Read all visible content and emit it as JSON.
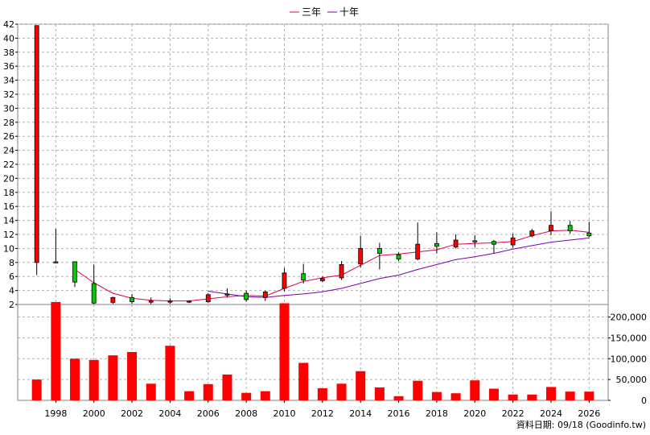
{
  "legend": {
    "items": [
      {
        "label": "三年",
        "color": "#e0004a"
      },
      {
        "label": "十年",
        "color": "#7a00b0"
      }
    ]
  },
  "footer": {
    "source": "資料日期: 09/18 (Goodinfo.tw)"
  },
  "colors": {
    "up": "#ff0000",
    "down": "#00cc00",
    "volume": "#ff0000",
    "grid": "#b0b0b0"
  },
  "chart_data": [
    {
      "type": "candlestick",
      "title": "",
      "ylim": [
        2,
        42
      ],
      "y_ticks": [
        2,
        4,
        6,
        8,
        10,
        12,
        14,
        16,
        18,
        20,
        22,
        24,
        26,
        28,
        30,
        32,
        34,
        36,
        38,
        40,
        42
      ],
      "x_ticks": [
        "1998",
        "2000",
        "2002",
        "2004",
        "2006",
        "2008",
        "2010",
        "2012",
        "2014",
        "2016",
        "2018",
        "2020",
        "2022",
        "2024",
        "2026"
      ],
      "grid": true,
      "candles": [
        {
          "year": 1997,
          "open": 8.0,
          "close": 41.8,
          "high": 41.8,
          "low": 6.2
        },
        {
          "year": 1998,
          "open": 8.1,
          "close": 8.0,
          "high": 12.8,
          "low": 7.9
        },
        {
          "year": 1999,
          "open": 8.1,
          "close": 5.2,
          "high": 8.1,
          "low": 4.5
        },
        {
          "year": 2000,
          "open": 5.0,
          "close": 2.2,
          "high": 7.7,
          "low": 2.0
        },
        {
          "year": 2001,
          "open": 2.3,
          "close": 3.0,
          "high": 3.1,
          "low": 2.1
        },
        {
          "year": 2002,
          "open": 3.0,
          "close": 2.4,
          "high": 3.5,
          "low": 2.1
        },
        {
          "year": 2003,
          "open": 2.4,
          "close": 2.5,
          "high": 3.0,
          "low": 2.0
        },
        {
          "year": 2004,
          "open": 2.4,
          "close": 2.5,
          "high": 2.9,
          "low": 2.1
        },
        {
          "year": 2005,
          "open": 2.4,
          "close": 2.5,
          "high": 2.6,
          "low": 2.2
        },
        {
          "year": 2006,
          "open": 2.4,
          "close": 3.4,
          "high": 3.6,
          "low": 2.2
        },
        {
          "year": 2007,
          "open": 3.4,
          "close": 3.5,
          "high": 4.3,
          "low": 3.0
        },
        {
          "year": 2008,
          "open": 3.6,
          "close": 2.7,
          "high": 4.0,
          "low": 2.4
        },
        {
          "year": 2009,
          "open": 3.0,
          "close": 3.8,
          "high": 4.0,
          "low": 2.5
        },
        {
          "year": 2010,
          "open": 4.3,
          "close": 6.5,
          "high": 7.2,
          "low": 3.9
        },
        {
          "year": 2011,
          "open": 6.4,
          "close": 5.5,
          "high": 7.8,
          "low": 5.0
        },
        {
          "year": 2012,
          "open": 5.4,
          "close": 5.7,
          "high": 6.0,
          "low": 5.2
        },
        {
          "year": 2013,
          "open": 5.8,
          "close": 7.7,
          "high": 8.2,
          "low": 5.5
        },
        {
          "year": 2014,
          "open": 7.8,
          "close": 10.0,
          "high": 11.8,
          "low": 7.3
        },
        {
          "year": 2015,
          "open": 10.0,
          "close": 9.3,
          "high": 10.8,
          "low": 7.0
        },
        {
          "year": 2016,
          "open": 9.1,
          "close": 8.5,
          "high": 9.4,
          "low": 8.2
        },
        {
          "year": 2017,
          "open": 8.5,
          "close": 10.6,
          "high": 13.7,
          "low": 8.3
        },
        {
          "year": 2018,
          "open": 10.7,
          "close": 10.3,
          "high": 12.3,
          "low": 9.3
        },
        {
          "year": 2019,
          "open": 10.2,
          "close": 11.2,
          "high": 12.0,
          "low": 10.0
        },
        {
          "year": 2020,
          "open": 11.1,
          "close": 11.0,
          "high": 11.9,
          "low": 10.2
        },
        {
          "year": 2021,
          "open": 11.0,
          "close": 10.6,
          "high": 11.2,
          "low": 9.3
        },
        {
          "year": 2022,
          "open": 10.5,
          "close": 11.5,
          "high": 12.1,
          "low": 10.1
        },
        {
          "year": 2023,
          "open": 11.8,
          "close": 12.5,
          "high": 12.8,
          "low": 11.6
        },
        {
          "year": 2024,
          "open": 12.5,
          "close": 13.3,
          "high": 15.3,
          "low": 11.9
        },
        {
          "year": 2025,
          "open": 13.3,
          "close": 12.5,
          "high": 13.9,
          "low": 12.1
        },
        {
          "year": 2026,
          "open": 12.2,
          "close": 11.8,
          "high": 13.8,
          "low": 11.6
        }
      ],
      "series": [
        {
          "name": "三年",
          "x": [
            1999,
            2000,
            2001,
            2002,
            2003,
            2004,
            2005,
            2006,
            2007,
            2008,
            2009,
            2010,
            2011,
            2012,
            2013,
            2014,
            2015,
            2016,
            2017,
            2018,
            2019,
            2020,
            2021,
            2022,
            2023,
            2024,
            2025,
            2026
          ],
          "values": [
            7.0,
            5.1,
            3.6,
            2.9,
            2.6,
            2.5,
            2.5,
            2.8,
            3.1,
            3.3,
            3.2,
            4.3,
            5.3,
            5.8,
            6.2,
            7.6,
            9.0,
            9.2,
            9.5,
            9.8,
            10.6,
            10.7,
            10.8,
            11.0,
            11.8,
            12.5,
            12.6,
            12.3
          ]
        },
        {
          "name": "十年",
          "x": [
            2006,
            2007,
            2008,
            2009,
            2010,
            2011,
            2012,
            2013,
            2014,
            2015,
            2016,
            2017,
            2018,
            2019,
            2020,
            2021,
            2022,
            2023,
            2024,
            2025,
            2026
          ],
          "values": [
            3.9,
            3.5,
            3.1,
            3.0,
            3.3,
            3.5,
            3.8,
            4.3,
            5.0,
            5.7,
            6.2,
            7.0,
            7.7,
            8.4,
            8.8,
            9.3,
            9.9,
            10.4,
            10.9,
            11.2,
            11.5
          ]
        }
      ]
    },
    {
      "type": "bar",
      "title": "",
      "ylim": [
        0,
        230000
      ],
      "y_ticks": [
        0,
        50000,
        100000,
        150000,
        200000
      ],
      "y_tick_labels": [
        "0",
        "50,000",
        "100,000",
        "150,000",
        "200,000"
      ],
      "categories": [
        1997,
        1998,
        1999,
        2000,
        2001,
        2002,
        2003,
        2004,
        2005,
        2006,
        2007,
        2008,
        2009,
        2010,
        2011,
        2012,
        2013,
        2014,
        2015,
        2016,
        2017,
        2018,
        2019,
        2020,
        2021,
        2022,
        2023,
        2024,
        2025,
        2026
      ],
      "values": [
        50000,
        236000,
        100000,
        97000,
        108000,
        116000,
        40000,
        131000,
        22000,
        39000,
        62000,
        18000,
        22000,
        233000,
        90000,
        29000,
        40000,
        70000,
        31000,
        10000,
        47000,
        20000,
        17000,
        48000,
        28000,
        14000,
        14000,
        32000,
        21000,
        21000
      ]
    }
  ]
}
